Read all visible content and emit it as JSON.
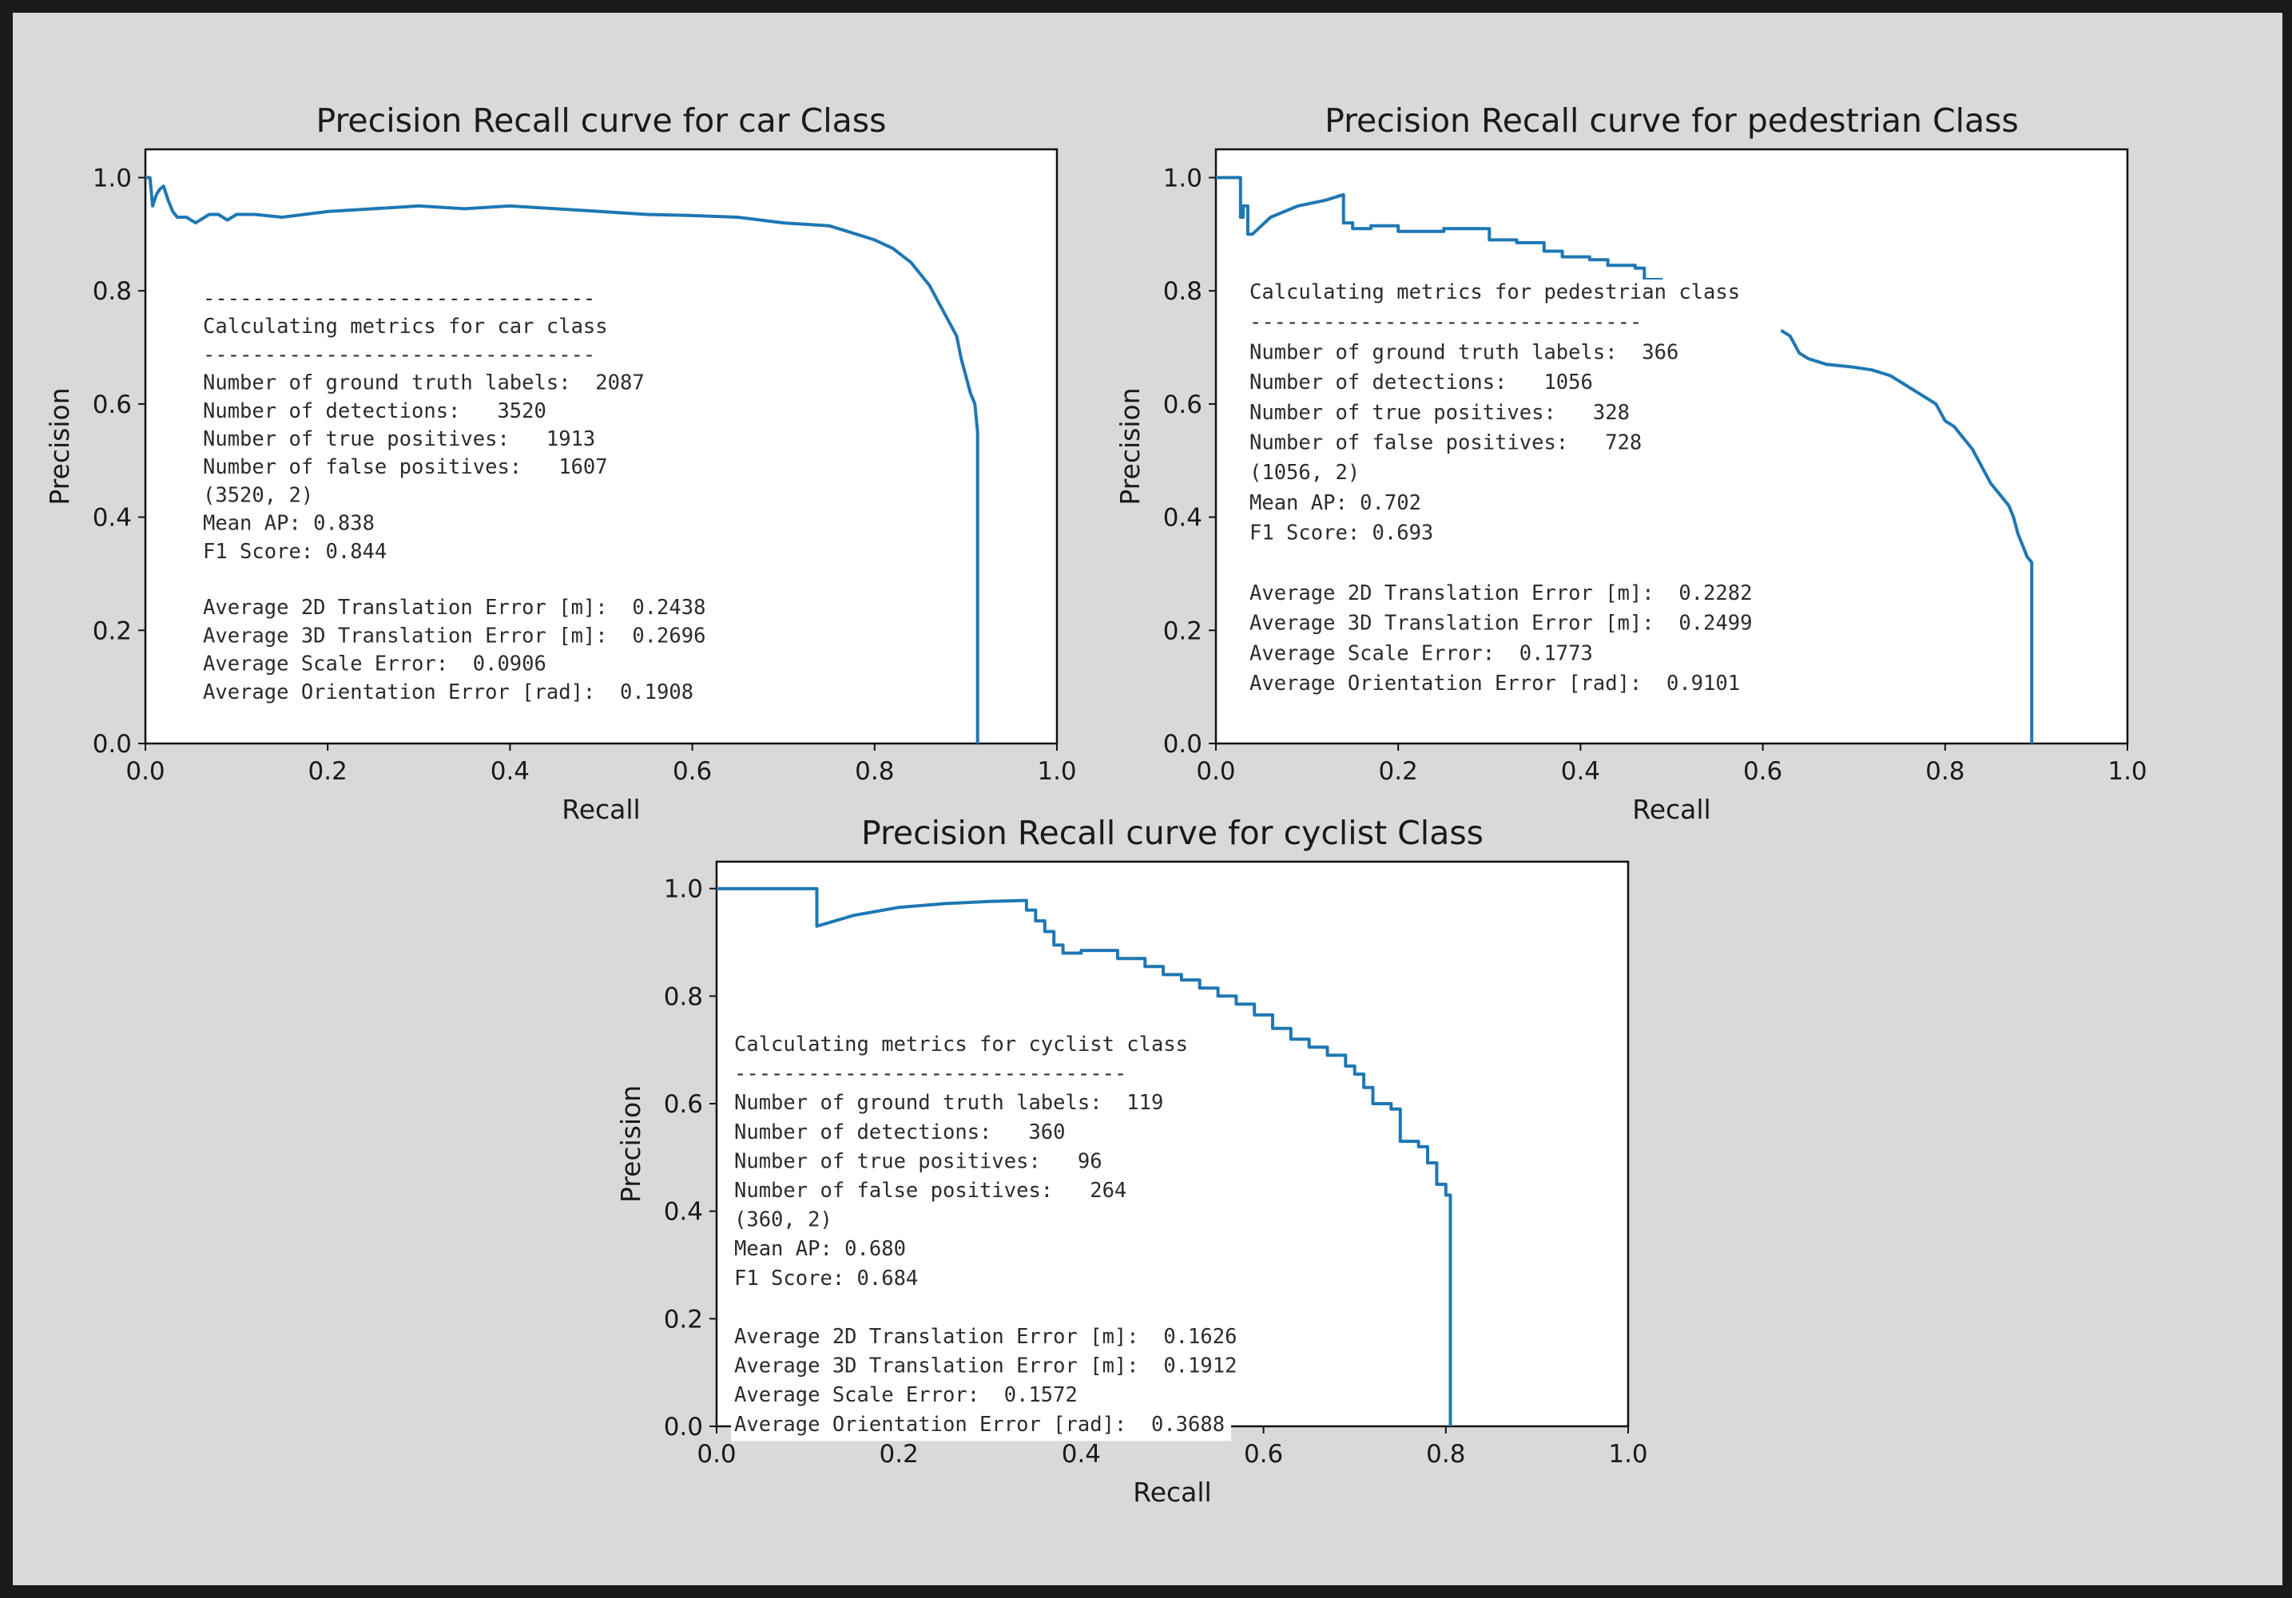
{
  "chart_data": [
    {
      "type": "line",
      "title": "Precision Recall curve for car Class",
      "xlabel": "Recall",
      "ylabel": "Precision",
      "xlim": [
        0,
        1
      ],
      "ylim": [
        0,
        1.05
      ],
      "xticks": [
        "0.0",
        "0.2",
        "0.4",
        "0.6",
        "0.8",
        "1.0"
      ],
      "yticks": [
        "0.0",
        "0.2",
        "0.4",
        "0.6",
        "0.8",
        "1.0"
      ],
      "grid": false,
      "color": "#1f77b4",
      "series": [
        {
          "x": [
            0.0,
            0.005,
            0.008,
            0.012,
            0.016,
            0.02,
            0.025,
            0.03,
            0.035,
            0.045,
            0.055,
            0.07,
            0.08,
            0.09,
            0.1,
            0.12,
            0.15,
            0.2,
            0.25,
            0.3,
            0.35,
            0.4,
            0.45,
            0.5,
            0.55,
            0.6,
            0.65,
            0.7,
            0.75,
            0.77,
            0.8,
            0.82,
            0.84,
            0.86,
            0.87,
            0.88,
            0.89,
            0.895,
            0.9,
            0.905,
            0.91,
            0.913,
            0.913,
            0.913
          ],
          "y": [
            1.0,
            1.0,
            0.95,
            0.97,
            0.98,
            0.985,
            0.96,
            0.94,
            0.93,
            0.93,
            0.92,
            0.935,
            0.935,
            0.925,
            0.935,
            0.935,
            0.93,
            0.94,
            0.945,
            0.95,
            0.945,
            0.95,
            0.945,
            0.94,
            0.935,
            0.933,
            0.93,
            0.92,
            0.915,
            0.905,
            0.89,
            0.875,
            0.85,
            0.81,
            0.78,
            0.75,
            0.72,
            0.68,
            0.65,
            0.62,
            0.6,
            0.55,
            0.3,
            0.0
          ]
        }
      ],
      "metrics_text": [
        "--------------------------------",
        "Calculating metrics for car class",
        "--------------------------------",
        "Number of ground truth labels:  2087",
        "Number of detections:   3520",
        "Number of true positives:   1913",
        "Number of false positives:   1607",
        "(3520, 2)",
        "Mean AP: 0.838",
        "F1 Score: 0.844",
        "",
        "Average 2D Translation Error [m]:  0.2438",
        "Average 3D Translation Error [m]:  0.2696",
        "Average Scale Error:  0.0906",
        "Average Orientation Error [rad]:  0.1908"
      ]
    },
    {
      "type": "line",
      "title": "Precision Recall curve for pedestrian Class",
      "xlabel": "Recall",
      "ylabel": "Precision",
      "xlim": [
        0,
        1
      ],
      "ylim": [
        0,
        1.05
      ],
      "xticks": [
        "0.0",
        "0.2",
        "0.4",
        "0.6",
        "0.8",
        "1.0"
      ],
      "yticks": [
        "0.0",
        "0.2",
        "0.4",
        "0.6",
        "0.8",
        "1.0"
      ],
      "grid": false,
      "color": "#1f77b4",
      "series": [
        {
          "x": [
            0.0,
            0.027,
            0.027,
            0.03,
            0.03,
            0.035,
            0.035,
            0.04,
            0.06,
            0.09,
            0.12,
            0.14,
            0.14,
            0.15,
            0.15,
            0.17,
            0.17,
            0.2,
            0.2,
            0.25,
            0.25,
            0.3,
            0.3,
            0.33,
            0.33,
            0.36,
            0.36,
            0.38,
            0.38,
            0.41,
            0.41,
            0.43,
            0.43,
            0.46,
            0.46,
            0.47,
            0.47,
            0.49
          ],
          "y": [
            1.0,
            1.0,
            0.93,
            0.93,
            0.95,
            0.95,
            0.9,
            0.9,
            0.93,
            0.95,
            0.96,
            0.97,
            0.92,
            0.92,
            0.91,
            0.91,
            0.915,
            0.915,
            0.905,
            0.905,
            0.91,
            0.91,
            0.89,
            0.89,
            0.885,
            0.885,
            0.87,
            0.87,
            0.86,
            0.86,
            0.855,
            0.855,
            0.845,
            0.845,
            0.84,
            0.84,
            0.82,
            0.82
          ]
        },
        {
          "x": [
            0.62,
            0.63,
            0.64,
            0.65,
            0.67,
            0.7,
            0.72,
            0.74,
            0.75,
            0.77,
            0.78,
            0.79,
            0.8,
            0.81,
            0.82,
            0.83,
            0.84,
            0.85,
            0.86,
            0.87,
            0.875,
            0.88,
            0.885,
            0.89,
            0.895,
            0.895,
            0.895
          ],
          "y": [
            0.73,
            0.72,
            0.69,
            0.68,
            0.67,
            0.665,
            0.66,
            0.65,
            0.64,
            0.62,
            0.61,
            0.6,
            0.57,
            0.56,
            0.54,
            0.52,
            0.49,
            0.46,
            0.44,
            0.42,
            0.4,
            0.37,
            0.35,
            0.33,
            0.32,
            0.25,
            0.0
          ]
        }
      ],
      "metrics_text": [
        "Calculating metrics for pedestrian class",
        "--------------------------------",
        "Number of ground truth labels:  366",
        "Number of detections:   1056",
        "Number of true positives:   328",
        "Number of false positives:   728",
        "(1056, 2)",
        "Mean AP: 0.702",
        "F1 Score: 0.693",
        "",
        "Average 2D Translation Error [m]:  0.2282",
        "Average 3D Translation Error [m]:  0.2499",
        "Average Scale Error:  0.1773",
        "Average Orientation Error [rad]:  0.9101"
      ]
    },
    {
      "type": "line",
      "title": "Precision Recall curve for cyclist Class",
      "xlabel": "Recall",
      "ylabel": "Precision",
      "xlim": [
        0,
        1
      ],
      "ylim": [
        0,
        1.05
      ],
      "xticks": [
        "0.0",
        "0.2",
        "0.4",
        "0.6",
        "0.8",
        "1.0"
      ],
      "yticks": [
        "0.0",
        "0.2",
        "0.4",
        "0.6",
        "0.8",
        "1.0"
      ],
      "grid": false,
      "color": "#1f77b4",
      "series": [
        {
          "x": [
            0.0,
            0.11,
            0.11,
            0.15,
            0.2,
            0.25,
            0.3,
            0.34,
            0.34,
            0.35,
            0.35,
            0.36,
            0.36,
            0.37,
            0.37,
            0.38,
            0.38,
            0.4,
            0.4,
            0.44,
            0.44,
            0.47,
            0.47,
            0.49,
            0.49,
            0.51,
            0.51,
            0.53,
            0.53,
            0.55,
            0.55,
            0.57,
            0.57,
            0.59,
            0.59,
            0.61,
            0.61,
            0.63,
            0.63,
            0.65,
            0.65,
            0.67,
            0.67,
            0.69,
            0.69,
            0.7,
            0.7,
            0.71,
            0.71,
            0.72,
            0.72,
            0.74,
            0.74,
            0.75,
            0.75,
            0.77,
            0.77,
            0.78,
            0.78,
            0.79,
            0.79,
            0.8,
            0.8,
            0.805,
            0.805
          ],
          "y": [
            1.0,
            1.0,
            0.93,
            0.95,
            0.965,
            0.972,
            0.976,
            0.978,
            0.96,
            0.96,
            0.94,
            0.94,
            0.92,
            0.92,
            0.895,
            0.895,
            0.88,
            0.88,
            0.885,
            0.885,
            0.87,
            0.87,
            0.855,
            0.855,
            0.84,
            0.84,
            0.83,
            0.83,
            0.815,
            0.815,
            0.8,
            0.8,
            0.785,
            0.785,
            0.765,
            0.765,
            0.74,
            0.74,
            0.72,
            0.72,
            0.705,
            0.705,
            0.69,
            0.69,
            0.67,
            0.67,
            0.655,
            0.655,
            0.63,
            0.63,
            0.6,
            0.6,
            0.59,
            0.59,
            0.53,
            0.53,
            0.52,
            0.52,
            0.49,
            0.49,
            0.45,
            0.45,
            0.43,
            0.43,
            0.0
          ]
        }
      ],
      "metrics_text": [
        "Calculating metrics for cyclist class",
        "--------------------------------",
        "Number of ground truth labels:  119",
        "Number of detections:   360",
        "Number of true positives:   96",
        "Number of false positives:   264",
        "(360, 2)",
        "Mean AP: 0.680",
        "F1 Score: 0.684",
        "",
        "Average 2D Translation Error [m]:  0.1626",
        "Average 3D Translation Error [m]:  0.1912",
        "Average Scale Error:  0.1572",
        "Average Orientation Error [rad]:  0.3688"
      ]
    }
  ]
}
